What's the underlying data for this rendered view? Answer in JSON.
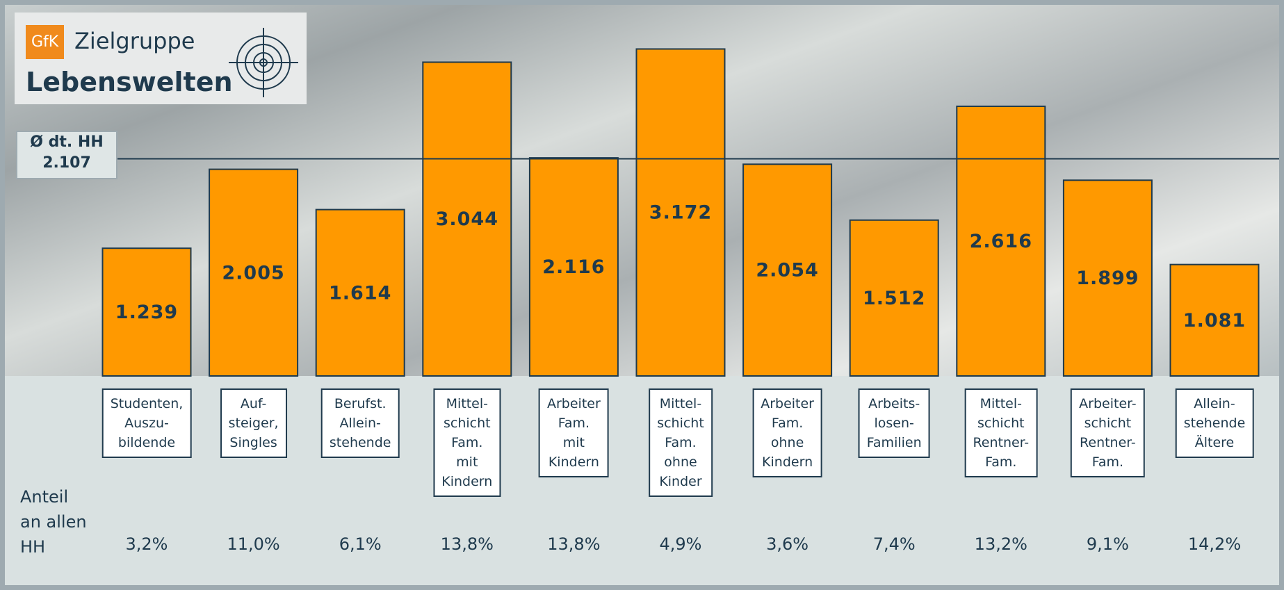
{
  "chart_data": {
    "type": "bar",
    "logo": {
      "brand": "GfK",
      "title": "Zielgruppe",
      "subtitle": "Lebenswelten"
    },
    "categories": [
      "Studenten,\nAuszu-\nbildende",
      "Auf-\nsteiger,\nSingles",
      "Berufst.\nAllein-\nstehende",
      "Mittel-\nschicht\nFam.\nmit\nKindern",
      "Arbeiter\nFam.\nmit\nKindern",
      "Mittel-\nschicht\nFam.\nohne\nKinder",
      "Arbeiter\nFam.\nohne\nKindern",
      "Arbeits-\nlosen-\nFamilien",
      "Mittel-\nschicht\nRentner-\nFam.",
      "Arbeiter-\nschicht\nRentner-\nFam.",
      "Allein-\nstehende\nÄltere"
    ],
    "values": [
      1239,
      2005,
      1614,
      3044,
      2116,
      3172,
      2054,
      1512,
      2616,
      1899,
      1081
    ],
    "value_labels": [
      "1.239",
      "2.005",
      "1.614",
      "3.044",
      "2.116",
      "3.172",
      "2.054",
      "1.512",
      "2.616",
      "1.899",
      "1.081"
    ],
    "color": "#ff9900",
    "ylim": [
      0,
      3600
    ],
    "reference": {
      "label": "Ø dt. HH",
      "value": 2107,
      "value_label": "2.107"
    },
    "shares": {
      "label": "Anteil\nan allen\nHH",
      "values": [
        "3,2%",
        "11,0%",
        "6,1%",
        "13,8%",
        "13,8%",
        "4,9%",
        "3,6%",
        "7,4%",
        "13,2%",
        "9,1%",
        "14,2%"
      ]
    }
  }
}
